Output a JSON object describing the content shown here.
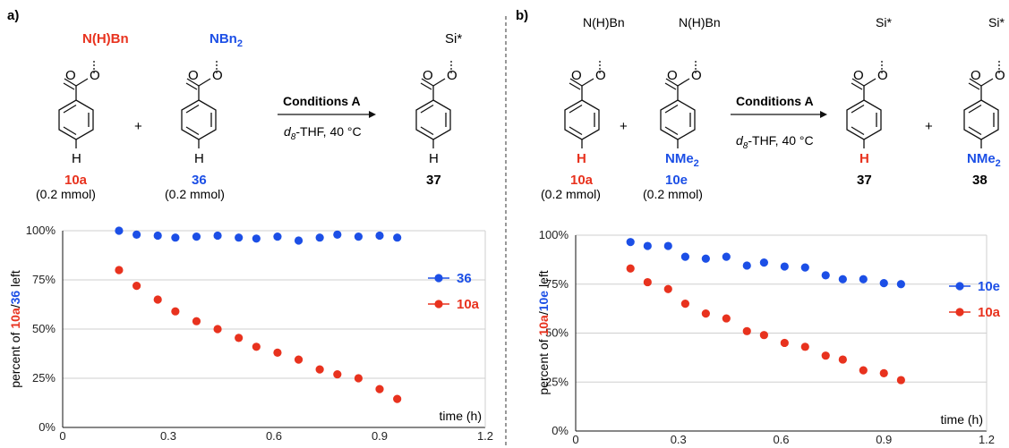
{
  "colors": {
    "red": "#e8321e",
    "blue": "#1c4fe6",
    "black": "#111111"
  },
  "panel_a": {
    "label": "a)",
    "reactant1": {
      "substituent": "N(H)Bn",
      "para": "H",
      "id": "10a",
      "amount": "(0.2 mmol)"
    },
    "reactant2": {
      "substituent": "NBn",
      "substituent_sub": "2",
      "para": "H",
      "id": "36",
      "amount": "(0.2 mmol)"
    },
    "plus": "+",
    "arrow_top": "Conditions A",
    "arrow_bottom_d": "d",
    "arrow_bottom_sub": "8",
    "arrow_bottom_rest": "-THF, 40 °C",
    "product": {
      "substituent": "Si*",
      "para": "H",
      "id": "37"
    }
  },
  "panel_b": {
    "label": "b)",
    "reactant1": {
      "substituent": "N(H)Bn",
      "para": "H",
      "id": "10a",
      "amount": "(0.2 mmol)"
    },
    "reactant2": {
      "substituent": "N(H)Bn",
      "para": "NMe",
      "para_sub": "2",
      "id": "10e",
      "amount": "(0.2 mmol)"
    },
    "plus": "+",
    "arrow_top": "Conditions A",
    "arrow_bottom_d": "d",
    "arrow_bottom_sub": "8",
    "arrow_bottom_rest": "-THF, 40 °C",
    "product1": {
      "substituent": "Si*",
      "para": "H",
      "id": "37"
    },
    "product2": {
      "substituent": "Si*",
      "para": "NMe",
      "para_sub": "2",
      "id": "38"
    }
  },
  "chart_data": [
    {
      "type": "scatter",
      "xlabel": "time (h)",
      "ylabel_prefix": "percent of ",
      "ylabel_a": "10a",
      "ylabel_sep": "/",
      "ylabel_b": "36",
      "ylabel_suffix": " left",
      "xlim": [
        0,
        1.2
      ],
      "ylim": [
        0,
        100
      ],
      "xticks": [
        "0",
        "0.3",
        "0.6",
        "0.9",
        "1.2"
      ],
      "xtick_values": [
        0,
        0.3,
        0.6,
        0.9,
        1.2
      ],
      "yticks": [
        "0%",
        "25%",
        "50%",
        "75%",
        "100%"
      ],
      "ytick_values": [
        0,
        25,
        50,
        75,
        100
      ],
      "grid": true,
      "legend_position": "right",
      "series": [
        {
          "name": "36",
          "color": "#1c4fe6",
          "x": [
            0.16,
            0.21,
            0.27,
            0.32,
            0.38,
            0.44,
            0.5,
            0.55,
            0.61,
            0.67,
            0.73,
            0.78,
            0.84,
            0.9,
            0.95
          ],
          "y": [
            100,
            98,
            97.5,
            96.5,
            97,
            97.5,
            96.5,
            96,
            97,
            95,
            96.5,
            98,
            97,
            97.5,
            96.5
          ]
        },
        {
          "name": "10a",
          "color": "#e8321e",
          "x": [
            0.16,
            0.21,
            0.27,
            0.32,
            0.38,
            0.44,
            0.5,
            0.55,
            0.61,
            0.67,
            0.73,
            0.78,
            0.84,
            0.9,
            0.95
          ],
          "y": [
            80,
            72,
            65,
            59,
            54,
            50,
            45.5,
            41,
            38,
            34.5,
            29.5,
            27,
            25,
            19.5,
            14.5
          ]
        }
      ]
    },
    {
      "type": "scatter",
      "xlabel": "time (h)",
      "ylabel_prefix": "percent of ",
      "ylabel_a": "10a",
      "ylabel_sep": "/",
      "ylabel_b": "10e",
      "ylabel_suffix": " left",
      "xlim": [
        0,
        1.2
      ],
      "ylim": [
        0,
        100
      ],
      "xticks": [
        "0",
        "0.3",
        "0.6",
        "0.9",
        "1.2"
      ],
      "xtick_values": [
        0,
        0.3,
        0.6,
        0.9,
        1.2
      ],
      "yticks": [
        "0%",
        "25%",
        "50%",
        "75%",
        "100%"
      ],
      "ytick_values": [
        0,
        25,
        50,
        75,
        100
      ],
      "grid": true,
      "legend_position": "right",
      "series": [
        {
          "name": "10e",
          "color": "#1c4fe6",
          "x": [
            0.16,
            0.21,
            0.27,
            0.32,
            0.38,
            0.44,
            0.5,
            0.55,
            0.61,
            0.67,
            0.73,
            0.78,
            0.84,
            0.9,
            0.95
          ],
          "y": [
            96.5,
            94.5,
            94.5,
            89,
            88,
            89,
            84.5,
            86,
            84,
            83.5,
            79.5,
            77.5,
            77.5,
            75.5,
            75
          ]
        },
        {
          "name": "10a",
          "color": "#e8321e",
          "x": [
            0.16,
            0.21,
            0.27,
            0.32,
            0.38,
            0.44,
            0.5,
            0.55,
            0.61,
            0.67,
            0.73,
            0.78,
            0.84,
            0.9,
            0.95
          ],
          "y": [
            83,
            76,
            72.5,
            65,
            60,
            57.5,
            51,
            49,
            45,
            43,
            38.5,
            36.5,
            31,
            29.5,
            26
          ]
        }
      ]
    }
  ]
}
